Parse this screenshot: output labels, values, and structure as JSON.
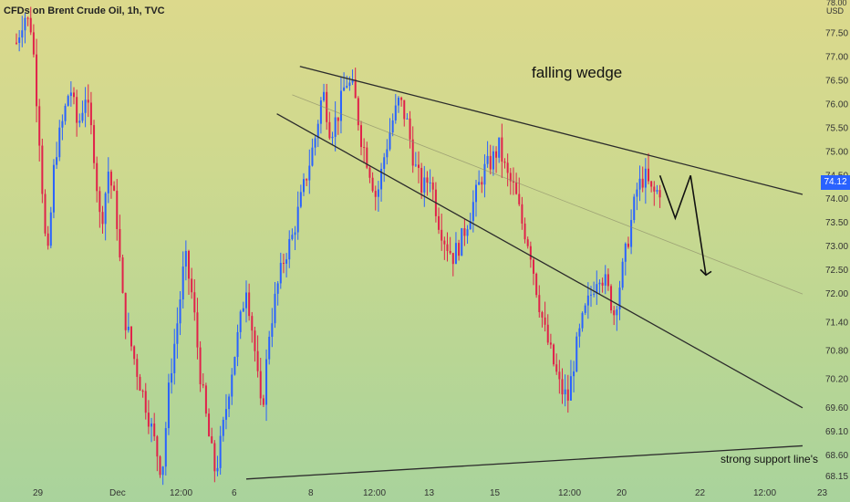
{
  "chart_title": "CFDs on Brent Crude Oil, 1h, TVC",
  "axis": {
    "unit": "USD",
    "top_partial_label": "78.00",
    "last_price": "74.12",
    "last_price_color": "#2962ff"
  },
  "annotations": {
    "pattern_label": "falling wedge",
    "support_label": "strong support line's"
  },
  "colors": {
    "up_candle": "#2962ff",
    "down_candle": "#e0224a",
    "lines": "#2b2b2b"
  },
  "chart_data": {
    "type": "candlestick",
    "title": "CFDs on Brent Crude Oil, 1h, TVC",
    "y_unit": "USD",
    "ylim": [
      68.0,
      78.2
    ],
    "y_ticks": [
      68.15,
      68.6,
      69.1,
      69.6,
      70.2,
      70.8,
      71.4,
      72.0,
      72.5,
      73.0,
      73.5,
      74.0,
      74.5,
      75.0,
      75.5,
      76.0,
      76.5,
      77.0,
      77.5
    ],
    "x_ticks": [
      "29",
      "Dec",
      "12:00",
      "6",
      "8",
      "12:00",
      "13",
      "15",
      "12:00",
      "20",
      "22",
      "12:00",
      "23"
    ],
    "approximate_path": [
      [
        0,
        77.3
      ],
      [
        2,
        77.9
      ],
      [
        4,
        77.6
      ],
      [
        6,
        75.3
      ],
      [
        8,
        72.5
      ],
      [
        10,
        74.9
      ],
      [
        12,
        75.6
      ],
      [
        14,
        76.4
      ],
      [
        16,
        75.5
      ],
      [
        18,
        76.2
      ],
      [
        20,
        75.2
      ],
      [
        22,
        73.4
      ],
      [
        24,
        74.6
      ],
      [
        26,
        73.8
      ],
      [
        28,
        71.6
      ],
      [
        30,
        70.9
      ],
      [
        32,
        70.2
      ],
      [
        34,
        69.6
      ],
      [
        36,
        68.9
      ],
      [
        38,
        68.2
      ],
      [
        40,
        70.2
      ],
      [
        42,
        71.4
      ],
      [
        44,
        72.8
      ],
      [
        46,
        71.9
      ],
      [
        48,
        70.3
      ],
      [
        50,
        69.1
      ],
      [
        52,
        68.2
      ],
      [
        54,
        69.2
      ],
      [
        56,
        70.3
      ],
      [
        58,
        71.2
      ],
      [
        60,
        72.2
      ],
      [
        62,
        71.0
      ],
      [
        64,
        69.4
      ],
      [
        66,
        71.2
      ],
      [
        68,
        72.1
      ],
      [
        70,
        72.8
      ],
      [
        72,
        73.2
      ],
      [
        74,
        73.9
      ],
      [
        76,
        74.6
      ],
      [
        78,
        75.3
      ],
      [
        80,
        76.3
      ],
      [
        82,
        75.4
      ],
      [
        84,
        75.8
      ],
      [
        86,
        76.5
      ],
      [
        88,
        76.3
      ],
      [
        90,
        75.3
      ],
      [
        92,
        74.7
      ],
      [
        94,
        74.0
      ],
      [
        96,
        74.9
      ],
      [
        98,
        75.6
      ],
      [
        100,
        76.1
      ],
      [
        102,
        75.6
      ],
      [
        104,
        74.7
      ],
      [
        106,
        74.2
      ],
      [
        108,
        74.5
      ],
      [
        110,
        73.6
      ],
      [
        112,
        73.1
      ],
      [
        114,
        72.8
      ],
      [
        116,
        73.1
      ],
      [
        118,
        73.6
      ],
      [
        120,
        74.1
      ],
      [
        122,
        74.6
      ],
      [
        124,
        74.8
      ],
      [
        126,
        75.1
      ],
      [
        128,
        74.5
      ],
      [
        130,
        74.2
      ],
      [
        132,
        73.5
      ],
      [
        134,
        73.0
      ],
      [
        136,
        72.0
      ],
      [
        138,
        71.2
      ],
      [
        140,
        70.6
      ],
      [
        142,
        70.0
      ],
      [
        144,
        69.8
      ],
      [
        146,
        70.8
      ],
      [
        148,
        71.5
      ],
      [
        150,
        72.0
      ],
      [
        152,
        72.5
      ],
      [
        154,
        72.2
      ],
      [
        156,
        71.6
      ],
      [
        158,
        72.4
      ],
      [
        160,
        73.3
      ],
      [
        162,
        74.2
      ],
      [
        164,
        74.5
      ],
      [
        166,
        74.1
      ],
      [
        168,
        74.2
      ]
    ],
    "trendlines": [
      {
        "name": "upper wedge line",
        "from": [
          74,
          76.8
        ],
        "to": [
          208,
          74.1
        ]
      },
      {
        "name": "lower wedge line",
        "from": [
          68,
          75.8
        ],
        "to": [
          208,
          69.6
        ]
      },
      {
        "name": "midline",
        "from": [
          72,
          76.2
        ],
        "to": [
          208,
          72.0
        ]
      },
      {
        "name": "support line",
        "from": [
          60,
          68.1
        ],
        "to": [
          220,
          68.8
        ]
      }
    ],
    "projection": [
      [
        168,
        74.5
      ],
      [
        172,
        73.6
      ],
      [
        176,
        74.5
      ],
      [
        180,
        72.4
      ]
    ]
  }
}
